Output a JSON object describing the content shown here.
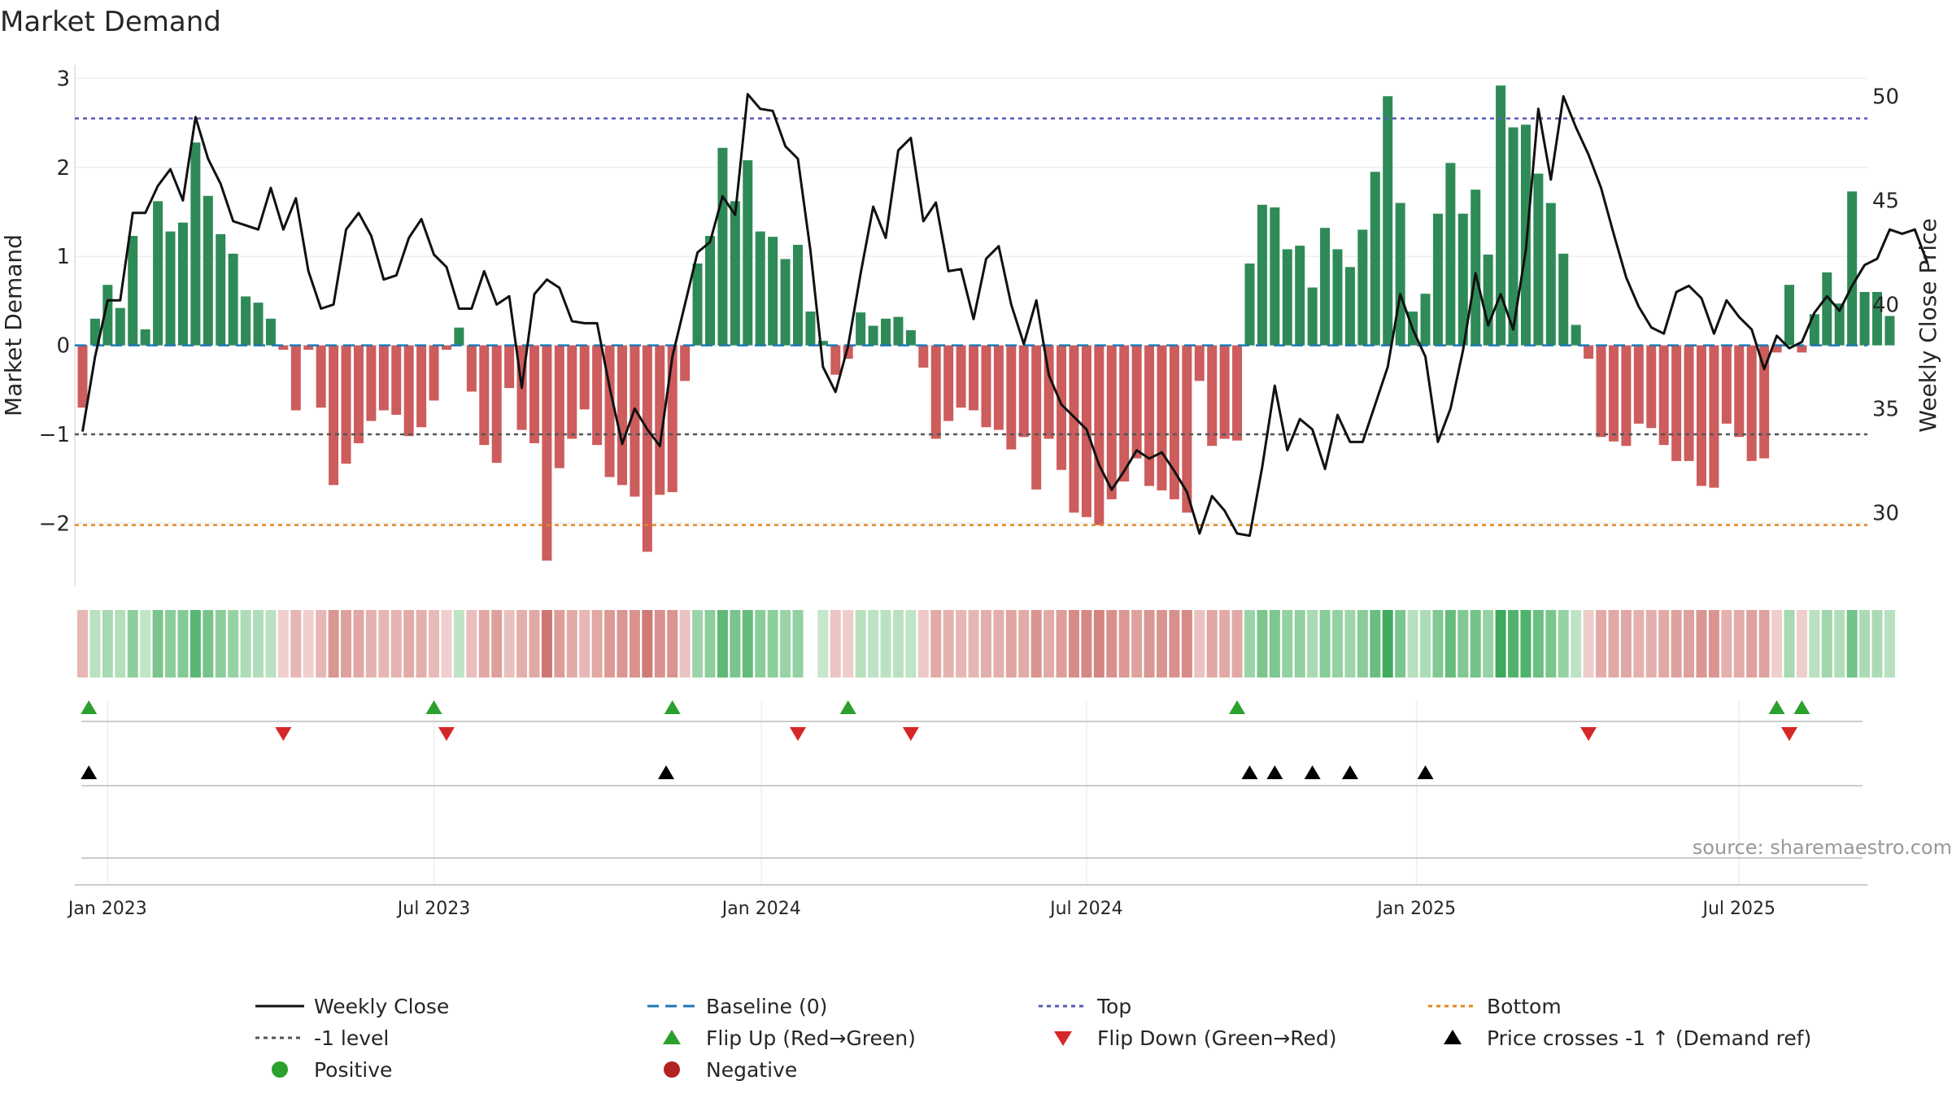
{
  "chart_data": {
    "type": "bar",
    "title": "Market Demand",
    "ylabel_left": "Market Demand",
    "ylabel_right": "Weekly Close Price",
    "ylim_left": [
      -2.7,
      3.15
    ],
    "ylim_right": [
      26.5,
      51.5
    ],
    "yticks_left": [
      3,
      2,
      1,
      0,
      -1,
      -2
    ],
    "ytick_labels_left": [
      "3",
      "2",
      "1",
      "0",
      "−1",
      "−2"
    ],
    "yticks_right": [
      50,
      45,
      40,
      35,
      30
    ],
    "ytick_labels_right": [
      "50",
      "45",
      "40",
      "35",
      "30"
    ],
    "x_start": "2022-12-19",
    "x_step_days": 7,
    "xticks": [
      {
        "label": "Jan 2023",
        "week": 2
      },
      {
        "label": "Jul 2023",
        "week": 28
      },
      {
        "label": "Jan 2024",
        "week": 54.1
      },
      {
        "label": "Jul 2024",
        "week": 80
      },
      {
        "label": "Jan 2025",
        "week": 106.3
      },
      {
        "label": "Jul 2025",
        "week": 132
      }
    ],
    "reference_lines": [
      {
        "name": "Top",
        "value": 2.55,
        "color": "#5a5ab8"
      },
      {
        "name": "-1 level",
        "value": -1.0,
        "color": "#555555"
      },
      {
        "name": "Bottom",
        "value": -2.02,
        "color": "#e08a1e"
      },
      {
        "name": "Baseline (0)",
        "value": 0,
        "color": "#1f77b4"
      }
    ],
    "series": [
      {
        "name": "Market Demand",
        "values": [
          -0.7,
          0.3,
          0.68,
          0.42,
          1.23,
          0.18,
          1.62,
          1.28,
          1.38,
          2.28,
          1.68,
          1.25,
          1.03,
          0.55,
          0.48,
          0.3,
          -0.05,
          -0.73,
          -0.05,
          -0.7,
          -1.57,
          -1.33,
          -1.1,
          -0.85,
          -0.73,
          -0.78,
          -1.02,
          -0.92,
          -0.62,
          -0.05,
          0.2,
          -0.52,
          -1.12,
          -1.32,
          -0.48,
          -0.95,
          -1.1,
          -2.42,
          -1.38,
          -1.05,
          -0.72,
          -1.12,
          -1.48,
          -1.57,
          -1.7,
          -2.32,
          -1.68,
          -1.65,
          -0.4,
          0.92,
          1.23,
          2.22,
          1.62,
          2.08,
          1.28,
          1.22,
          0.97,
          1.13,
          0.38,
          0.05,
          -0.33,
          -0.15,
          0.37,
          0.22,
          0.3,
          0.32,
          0.17,
          -0.25,
          -1.05,
          -0.85,
          -0.7,
          -0.73,
          -0.92,
          -0.95,
          -1.17,
          -1.03,
          -1.62,
          -1.05,
          -1.4,
          -1.88,
          -1.93,
          -2.02,
          -1.73,
          -1.53,
          -1.27,
          -1.58,
          -1.63,
          -1.73,
          -1.88,
          -0.4,
          -1.13,
          -1.05,
          -1.07,
          0.92,
          1.58,
          1.55,
          1.08,
          1.12,
          0.65,
          1.32,
          1.08,
          0.88,
          1.3,
          1.95,
          2.8,
          1.6,
          0.38,
          0.58,
          1.48,
          2.05,
          1.48,
          1.75,
          1.02,
          2.92,
          2.45,
          2.48,
          1.93,
          1.6,
          1.03,
          0.23,
          -0.15,
          -1.03,
          -1.08,
          -1.13,
          -0.88,
          -0.93,
          -1.12,
          -1.3,
          -1.3,
          -1.58,
          -1.6,
          -0.88,
          -1.03,
          -1.3,
          -1.27,
          -0.08,
          0.68,
          -0.08,
          0.35,
          0.82,
          0.47,
          1.73,
          0.6,
          0.6,
          0.33
        ]
      },
      {
        "name": "Weekly Close",
        "values": [
          33.9,
          37.5,
          40.2,
          40.2,
          44.4,
          44.4,
          45.7,
          46.5,
          45.0,
          49.0,
          47.0,
          45.8,
          44.0,
          43.8,
          43.6,
          45.6,
          43.6,
          45.1,
          41.6,
          39.8,
          40.0,
          43.6,
          44.4,
          43.3,
          41.2,
          41.4,
          43.2,
          44.1,
          42.4,
          41.8,
          39.8,
          39.8,
          41.6,
          40.0,
          40.4,
          36.0,
          40.5,
          41.2,
          40.8,
          39.2,
          39.1,
          39.1,
          36.0,
          33.3,
          35.0,
          34.0,
          33.2,
          37.5,
          40.0,
          42.5,
          43.0,
          45.2,
          44.3,
          50.1,
          49.4,
          49.3,
          47.6,
          47.0,
          42.6,
          37.0,
          35.8,
          38.0,
          41.5,
          44.7,
          43.2,
          47.4,
          48.0,
          44.0,
          44.9,
          41.6,
          41.7,
          39.3,
          42.2,
          42.8,
          40.0,
          38.1,
          40.2,
          36.6,
          35.2,
          34.6,
          34.0,
          32.3,
          31.1,
          32.0,
          33.0,
          32.6,
          32.9,
          32.0,
          31.0,
          29.0,
          30.8,
          30.1,
          29.0,
          28.9,
          32.2,
          36.1,
          33.0,
          34.5,
          34.0,
          32.1,
          34.7,
          33.4,
          33.4,
          35.2,
          37.0,
          40.5,
          38.8,
          37.5,
          33.4,
          35.0,
          37.8,
          41.5,
          39.0,
          40.5,
          38.8,
          42.6,
          49.4,
          46.0,
          50.0,
          48.5,
          47.2,
          45.6,
          43.4,
          41.3,
          39.9,
          38.9,
          38.6,
          40.6,
          40.9,
          40.3,
          38.6,
          40.2,
          39.4,
          38.8,
          36.9,
          38.5,
          37.9,
          38.2,
          39.6,
          40.4,
          39.7,
          40.9,
          41.9,
          42.2,
          43.6,
          43.4,
          43.6,
          42.0
        ]
      }
    ],
    "heat_strip": {
      "description": "demand intensity per week",
      "gap_week": 58
    },
    "event_rows": [
      {
        "name": "Flip Up (Red→Green)",
        "weeks": [
          0.5,
          28,
          47,
          61,
          92,
          135,
          137
        ]
      },
      {
        "name": "Flip Down (Green→Red)",
        "weeks": [
          16,
          29,
          57,
          66,
          120,
          136
        ]
      },
      {
        "name": "Price crosses -1 ↑ (Demand ref)",
        "weeks": [
          0.5,
          46.5,
          93,
          95,
          98,
          101,
          107
        ]
      }
    ],
    "legend": {
      "position": "bottom",
      "entries": [
        {
          "label": "Weekly Close",
          "kind": "line-solid",
          "color": "#111111"
        },
        {
          "label": "Baseline (0)",
          "kind": "line-dash",
          "color": "#1f77b4"
        },
        {
          "label": "Top",
          "kind": "line-dot",
          "color": "#5a5ab8"
        },
        {
          "label": "Bottom",
          "kind": "line-dot",
          "color": "#e08a1e"
        },
        {
          "label": "-1 level",
          "kind": "line-dot",
          "color": "#555555"
        },
        {
          "label": "Flip Up (Red→Green)",
          "kind": "tri-up",
          "color": "#2ca02c"
        },
        {
          "label": "Flip Down (Green→Red)",
          "kind": "tri-down",
          "color": "#d62728"
        },
        {
          "label": "Price crosses -1 ↑ (Demand ref)",
          "kind": "tri-up",
          "color": "#000000"
        },
        {
          "label": "Positive",
          "kind": "dot",
          "color": "#2ca02c"
        },
        {
          "label": "Negative",
          "kind": "dot",
          "color": "#b22222"
        }
      ]
    },
    "colors": {
      "positive_bar": "#2e8b57",
      "negative_bar": "#cd5c5c",
      "price_line": "#111111",
      "flip_up": "#2ca02c",
      "flip_down": "#d62728",
      "cross": "#000000"
    },
    "source": "source: sharemaestro.com"
  }
}
